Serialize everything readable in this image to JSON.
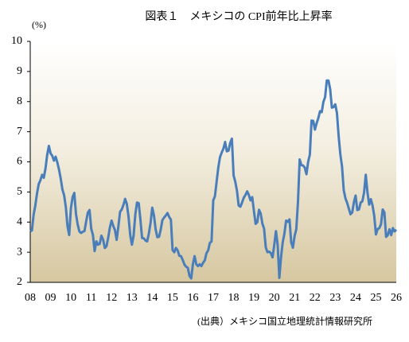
{
  "chart_data": {
    "type": "line",
    "title": "図表１　メキシコの CPI前年比上昇率",
    "y_label": "(%)",
    "source": "(出典）メキシコ国立地理統計情報研究所",
    "color": "#4a7ebb",
    "categories": [
      "08",
      null,
      null,
      null,
      null,
      null,
      null,
      null,
      null,
      null,
      null,
      null,
      "09",
      null,
      null,
      null,
      null,
      null,
      null,
      null,
      null,
      null,
      null,
      null,
      "10",
      null,
      null,
      null,
      null,
      null,
      null,
      null,
      null,
      null,
      null,
      null,
      "11",
      null,
      null,
      null,
      null,
      null,
      null,
      null,
      null,
      null,
      null,
      null,
      "12",
      null,
      null,
      null,
      null,
      null,
      null,
      null,
      null,
      null,
      null,
      null,
      "13",
      null,
      null,
      null,
      null,
      null,
      null,
      null,
      null,
      null,
      null,
      null,
      "14",
      null,
      null,
      null,
      null,
      null,
      null,
      null,
      null,
      null,
      null,
      null,
      "15",
      null,
      null,
      null,
      null,
      null,
      null,
      null,
      null,
      null,
      null,
      null,
      "16",
      null,
      null,
      null,
      null,
      null,
      null,
      null,
      null,
      null,
      null,
      null,
      "17",
      null,
      null,
      null,
      null,
      null,
      null,
      null,
      null,
      null,
      null,
      null,
      "18",
      null,
      null,
      null,
      null,
      null,
      null,
      null,
      null,
      null,
      null,
      null,
      "19",
      null,
      null,
      null,
      null,
      null,
      null,
      null,
      null,
      null,
      null,
      null,
      "20",
      null,
      null,
      null,
      null,
      null,
      null,
      null,
      null,
      null,
      null,
      null,
      "21",
      null,
      null,
      null,
      null,
      null,
      null,
      null,
      null,
      null,
      null,
      null,
      "22",
      null,
      null,
      null,
      null,
      null,
      null,
      null,
      null,
      null,
      null,
      null,
      "23",
      null,
      null,
      null,
      null,
      null,
      null,
      null,
      null,
      null,
      null,
      null,
      "24",
      null,
      null,
      null,
      null,
      null,
      null,
      null,
      null,
      null,
      null,
      null,
      "25",
      null,
      null,
      null,
      null,
      null,
      null,
      null,
      null,
      null,
      null,
      null,
      "26"
    ],
    "values": [
      3.7,
      3.72,
      4.25,
      4.55,
      4.95,
      5.26,
      5.39,
      5.57,
      5.47,
      5.78,
      6.23,
      6.53,
      6.28,
      6.2,
      6.04,
      6.17,
      5.98,
      5.74,
      5.44,
      5.08,
      4.89,
      4.5,
      3.86,
      3.57,
      4.46,
      4.83,
      4.97,
      4.27,
      3.92,
      3.69,
      3.64,
      3.68,
      3.7,
      4.02,
      4.32,
      4.4,
      3.78,
      3.57,
      3.04,
      3.36,
      3.25,
      3.28,
      3.55,
      3.42,
      3.14,
      3.2,
      3.48,
      3.82,
      4.05,
      3.87,
      3.73,
      3.41,
      3.85,
      4.34,
      4.42,
      4.57,
      4.77,
      4.6,
      4.18,
      3.57,
      3.25,
      3.55,
      4.25,
      4.65,
      4.63,
      4.09,
      3.47,
      3.46,
      3.39,
      3.36,
      3.62,
      3.97,
      4.48,
      4.23,
      3.76,
      3.5,
      3.51,
      3.75,
      4.07,
      4.15,
      4.22,
      4.3,
      4.17,
      4.08,
      3.07,
      3.0,
      3.14,
      3.06,
      2.88,
      2.87,
      2.74,
      2.59,
      2.52,
      2.48,
      2.21,
      2.13,
      2.61,
      2.87,
      2.6,
      2.54,
      2.6,
      2.54,
      2.65,
      2.73,
      2.97,
      3.06,
      3.31,
      3.36,
      4.72,
      4.86,
      5.35,
      5.82,
      6.16,
      6.31,
      6.44,
      6.66,
      6.35,
      6.37,
      6.63,
      6.77,
      5.55,
      5.34,
      5.04,
      4.55,
      4.51,
      4.65,
      4.81,
      4.9,
      5.02,
      4.9,
      4.72,
      4.83,
      4.37,
      3.94,
      4.0,
      4.41,
      4.28,
      3.95,
      3.78,
      3.16,
      3.0,
      3.02,
      2.97,
      2.83,
      3.24,
      3.7,
      3.25,
      2.15,
      2.84,
      3.33,
      3.62,
      4.05,
      4.01,
      4.09,
      3.33,
      3.15,
      3.54,
      3.76,
      4.67,
      6.08,
      5.89,
      5.88,
      5.81,
      5.59,
      6.0,
      6.24,
      7.37,
      7.36,
      7.07,
      7.28,
      7.45,
      7.68,
      7.65,
      7.99,
      8.15,
      8.7,
      8.7,
      8.41,
      7.8,
      7.82,
      7.91,
      7.62,
      6.85,
      6.25,
      5.84,
      5.06,
      4.79,
      4.64,
      4.45,
      4.26,
      4.32,
      4.66,
      4.88,
      4.4,
      4.42,
      4.65,
      4.69,
      4.98,
      5.57,
      4.99,
      4.58,
      4.76,
      4.55,
      4.21,
      3.59,
      3.77,
      3.8,
      3.93,
      4.42,
      4.32,
      3.51,
      3.57,
      3.76,
      3.57,
      3.8,
      3.69,
      3.75
    ],
    "ylim": [
      2,
      10
    ],
    "yticks": [
      2,
      3,
      4,
      5,
      6,
      7,
      8,
      9,
      10
    ]
  }
}
